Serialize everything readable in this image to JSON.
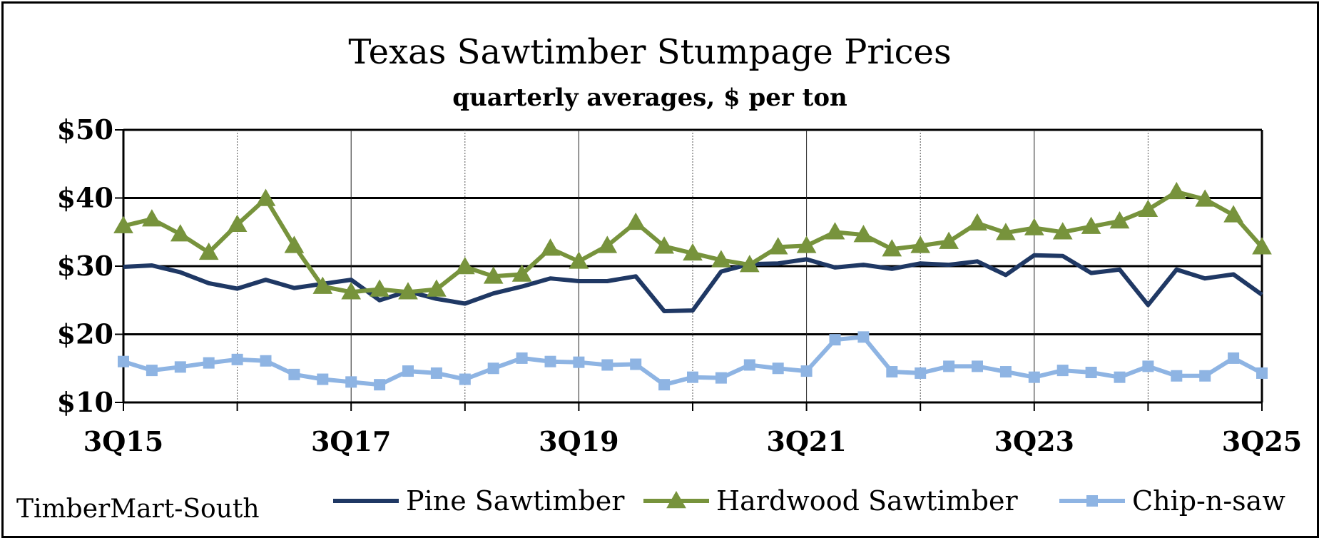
{
  "chart_data": {
    "type": "line",
    "title": "Texas Sawtimber Stumpage Prices",
    "subtitle": "quarterly averages, $ per ton",
    "source": "TimberMart-South",
    "xlabel": "",
    "ylabel": "",
    "x": [
      "3Q15",
      "4Q15",
      "1Q16",
      "2Q16",
      "3Q16",
      "4Q16",
      "1Q17",
      "2Q17",
      "3Q17",
      "4Q17",
      "1Q18",
      "2Q18",
      "3Q18",
      "4Q18",
      "1Q19",
      "2Q19",
      "3Q19",
      "4Q19",
      "1Q20",
      "2Q20",
      "3Q20",
      "4Q20",
      "1Q21",
      "2Q21",
      "3Q21",
      "4Q21",
      "1Q22",
      "2Q22",
      "3Q22",
      "4Q22",
      "1Q23",
      "2Q23",
      "3Q23",
      "4Q23",
      "1Q24",
      "2Q24",
      "3Q24",
      "4Q24",
      "1Q25",
      "2Q25",
      "3Q25"
    ],
    "x_tick_labels": [
      "3Q15",
      "3Q17",
      "3Q19",
      "3Q21",
      "3Q23",
      "3Q25"
    ],
    "y_tick_labels": [
      "$10",
      "$20",
      "$30",
      "$40",
      "$50"
    ],
    "ylim": [
      10,
      50
    ],
    "grid": true,
    "legend_position": "bottom",
    "series": [
      {
        "name": "Pine Sawtimber",
        "color": "#1f3864",
        "marker": "none",
        "values": [
          29.9,
          30.1,
          29.1,
          27.5,
          26.7,
          28.0,
          26.8,
          27.4,
          28.0,
          25.0,
          26.3,
          25.2,
          24.5,
          26.0,
          27.0,
          28.2,
          27.8,
          27.8,
          28.5,
          23.4,
          23.5,
          29.2,
          30.3,
          30.4,
          31.0,
          29.8,
          30.2,
          29.6,
          30.4,
          30.2,
          30.7,
          28.7,
          31.6,
          31.5,
          29.0,
          29.5,
          24.3,
          29.5,
          28.2,
          28.8,
          25.8
        ]
      },
      {
        "name": "Hardwood Sawtimber",
        "color": "#77933c",
        "marker": "triangle",
        "values": [
          35.9,
          36.9,
          34.7,
          32.0,
          36.1,
          39.9,
          33.0,
          27.0,
          26.2,
          26.6,
          26.2,
          26.6,
          29.9,
          28.5,
          28.8,
          32.6,
          30.7,
          33.0,
          36.4,
          32.9,
          31.9,
          30.9,
          30.2,
          32.8,
          33.0,
          35.0,
          34.6,
          32.5,
          33.0,
          33.6,
          36.3,
          34.9,
          35.6,
          35.0,
          35.8,
          36.6,
          38.3,
          40.9,
          39.8,
          37.5,
          32.8
        ]
      },
      {
        "name": "Chip-n-saw",
        "color": "#8eb4e3",
        "marker": "square",
        "values": [
          16.0,
          14.7,
          15.2,
          15.8,
          16.3,
          16.1,
          14.1,
          13.4,
          13.0,
          12.6,
          14.6,
          14.3,
          13.4,
          15.0,
          16.5,
          16.0,
          15.9,
          15.5,
          15.6,
          12.6,
          13.7,
          13.6,
          15.5,
          15.0,
          14.6,
          19.2,
          19.6,
          14.5,
          14.3,
          15.3,
          15.3,
          14.5,
          13.7,
          14.7,
          14.4,
          13.7,
          15.3,
          13.9,
          13.9,
          16.5,
          14.3
        ]
      }
    ]
  }
}
